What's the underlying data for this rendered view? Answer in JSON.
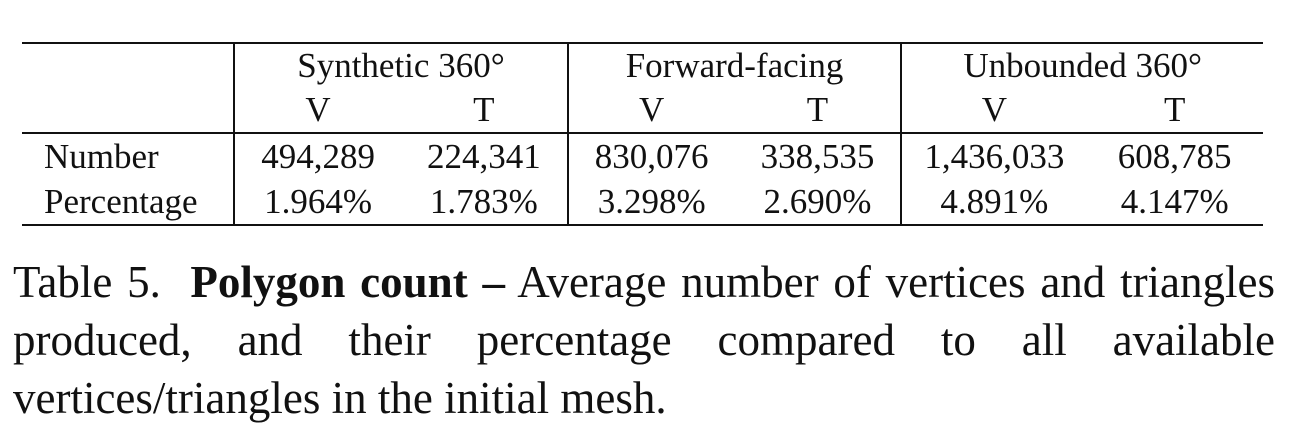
{
  "table": {
    "groups": [
      "Synthetic 360°",
      "Forward-facing",
      "Unbounded 360°"
    ],
    "subheaders": [
      "V",
      "T",
      "V",
      "T",
      "V",
      "T"
    ],
    "rows": [
      {
        "label": "Number",
        "cells": [
          "494,289",
          "224,341",
          "830,076",
          "338,535",
          "1,436,033",
          "608,785"
        ]
      },
      {
        "label": "Percentage",
        "cells": [
          "1.964%",
          "1.783%",
          "3.298%",
          "2.690%",
          "4.891%",
          "4.147%"
        ]
      }
    ]
  },
  "caption": {
    "prefix": "Table 5.",
    "bold": "Polygon count –",
    "text": "Average number of vertices and triangles produced, and their percentage compared to all available vertices/triangles in the initial mesh."
  }
}
